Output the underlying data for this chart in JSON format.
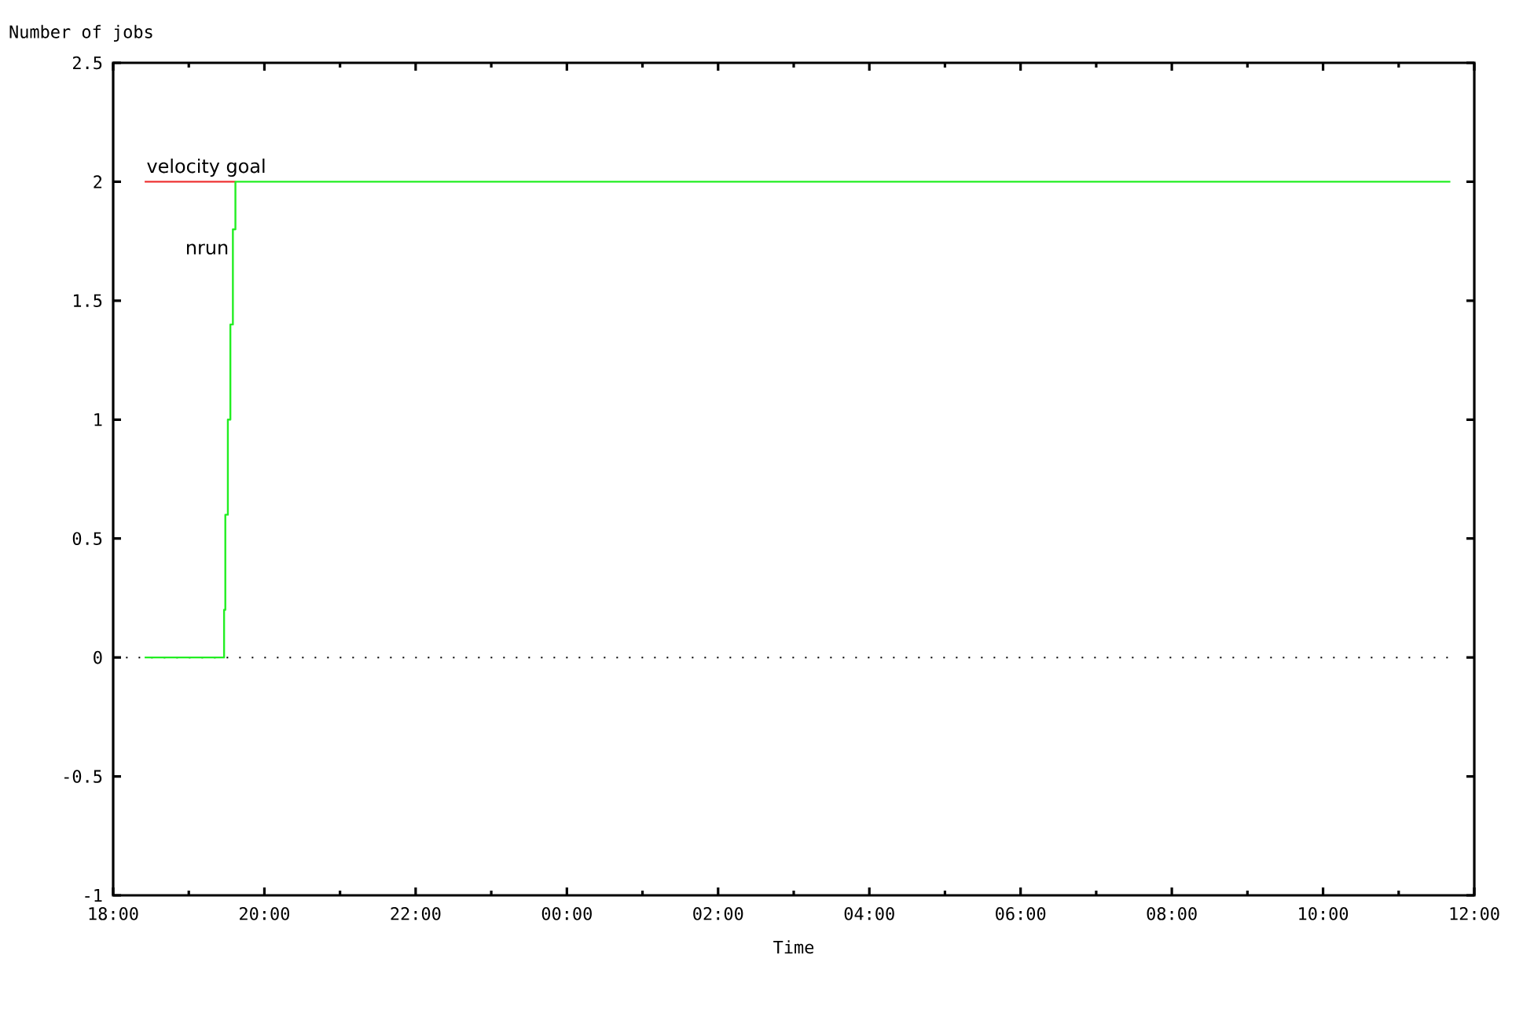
{
  "chart_data": {
    "type": "line",
    "xlabel": "Time",
    "ylabel": "Number of jobs",
    "series": [
      {
        "name": "velocity goal",
        "color": "#ee3333",
        "x": [
          "2000-01-01T18:25",
          "2000-01-01T19:37"
        ],
        "values": [
          2,
          2
        ]
      },
      {
        "name": "nrun",
        "color": "#22ee22",
        "x": [
          "2000-01-01T18:25",
          "2000-01-01T19:28",
          "2000-01-01T19:28",
          "2000-01-01T19:29",
          "2000-01-01T19:29",
          "2000-01-01T19:31",
          "2000-01-01T19:31",
          "2000-01-01T19:33",
          "2000-01-01T19:33",
          "2000-01-01T19:35",
          "2000-01-01T19:35",
          "2000-01-01T19:37",
          "2000-01-01T19:37",
          "2000-01-02T11:41"
        ],
        "values": [
          0,
          0,
          0.2,
          0.2,
          0.6,
          0.6,
          1.0,
          1.0,
          1.4,
          1.4,
          1.8,
          1.8,
          2,
          2
        ]
      }
    ],
    "xlim": [
      "2000-01-01T18:00",
      "2000-01-02T12:00"
    ],
    "ylim": [
      -1,
      2.5
    ],
    "xticks": [
      {
        "value": "2000-01-01T18:00",
        "label": "18:00"
      },
      {
        "value": "2000-01-01T19:00",
        "label": null
      },
      {
        "value": "2000-01-01T20:00",
        "label": "20:00"
      },
      {
        "value": "2000-01-01T21:00",
        "label": null
      },
      {
        "value": "2000-01-01T22:00",
        "label": "22:00"
      },
      {
        "value": "2000-01-01T23:00",
        "label": null
      },
      {
        "value": "2000-01-02T00:00",
        "label": "00:00"
      },
      {
        "value": "2000-01-02T01:00",
        "label": null
      },
      {
        "value": "2000-01-02T02:00",
        "label": "02:00"
      },
      {
        "value": "2000-01-02T03:00",
        "label": null
      },
      {
        "value": "2000-01-02T04:00",
        "label": "04:00"
      },
      {
        "value": "2000-01-02T05:00",
        "label": null
      },
      {
        "value": "2000-01-02T06:00",
        "label": "06:00"
      },
      {
        "value": "2000-01-02T07:00",
        "label": null
      },
      {
        "value": "2000-01-02T08:00",
        "label": "08:00"
      },
      {
        "value": "2000-01-02T09:00",
        "label": null
      },
      {
        "value": "2000-01-02T10:00",
        "label": "10:00"
      },
      {
        "value": "2000-01-02T11:00",
        "label": null
      },
      {
        "value": "2000-01-02T12:00",
        "label": "12:00"
      }
    ],
    "yticks": [
      -1,
      -0.5,
      0,
      0.5,
      1,
      1.5,
      2,
      2.5
    ],
    "ref_lines": [
      {
        "axis": "y",
        "value": 0,
        "color": "#000000",
        "line_style": "dotted"
      }
    ],
    "grid": false,
    "legend": false,
    "marker": "none",
    "line_style": "solid"
  }
}
